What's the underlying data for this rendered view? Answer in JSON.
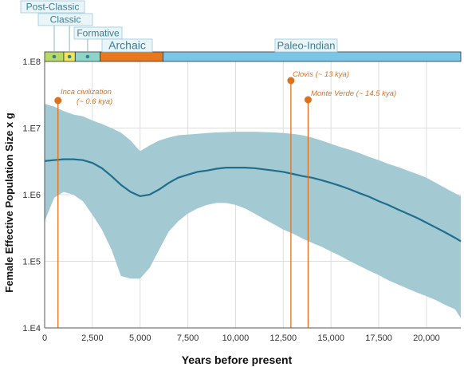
{
  "chart_data": {
    "type": "area",
    "xlabel": "Years before present",
    "ylabel": "Female Effective Population Size x g",
    "xlim": [
      0,
      21800
    ],
    "ylim": [
      10000,
      100000000
    ],
    "y_scale": "log",
    "grid": true,
    "x_ticks": [
      0,
      2500,
      5000,
      7500,
      10000,
      12500,
      15000,
      17500,
      20000
    ],
    "x_tick_labels": [
      "0",
      "2,500",
      "5,000",
      "7,500",
      "10,000",
      "12,500",
      "15,000",
      "17,500",
      "20,000"
    ],
    "y_ticks": [
      10000,
      100000,
      1000000,
      10000000,
      100000000
    ],
    "y_tick_labels": [
      "1.E4",
      "1.E5",
      "1.E6",
      "1.E7",
      "1.E8"
    ],
    "median": {
      "x": [
        0,
        500,
        1000,
        1500,
        2000,
        2500,
        3000,
        3500,
        4000,
        4500,
        5000,
        5500,
        6000,
        6500,
        7000,
        7500,
        8000,
        8500,
        9000,
        9500,
        10000,
        10500,
        11000,
        11500,
        12000,
        12500,
        13000,
        13500,
        14000,
        14500,
        15000,
        15500,
        16000,
        16500,
        17000,
        17500,
        18000,
        18500,
        19000,
        19500,
        20000,
        20500,
        21000,
        21500,
        21800
      ],
      "y": [
        3200000,
        3300000,
        3400000,
        3400000,
        3300000,
        3000000,
        2500000,
        1900000,
        1400000,
        1100000,
        950000,
        1000000,
        1200000,
        1500000,
        1800000,
        2000000,
        2200000,
        2300000,
        2450000,
        2550000,
        2550000,
        2550000,
        2500000,
        2400000,
        2300000,
        2200000,
        2050000,
        1900000,
        1800000,
        1650000,
        1500000,
        1350000,
        1200000,
        1050000,
        930000,
        800000,
        700000,
        600000,
        520000,
        450000,
        380000,
        320000,
        270000,
        225000,
        200000
      ]
    },
    "band_upper": [
      23000000,
      21000000,
      18000000,
      16000000,
      15000000,
      13000000,
      11500000,
      10000000,
      8500000,
      6500000,
      4500000,
      5500000,
      6500000,
      7200000,
      7800000,
      8000000,
      8200000,
      8400000,
      8600000,
      8700000,
      8800000,
      8800000,
      8800000,
      8700000,
      8600000,
      8400000,
      8200000,
      7800000,
      7200000,
      6500000,
      5800000,
      5200000,
      4700000,
      4200000,
      3700000,
      3300000,
      2900000,
      2600000,
      2300000,
      2050000,
      1800000,
      1500000,
      1250000,
      1050000,
      950000
    ],
    "band_lower": [
      400000,
      900000,
      1100000,
      1000000,
      800000,
      500000,
      300000,
      150000,
      60000,
      55000,
      55000,
      80000,
      150000,
      280000,
      400000,
      520000,
      620000,
      700000,
      750000,
      750000,
      700000,
      620000,
      520000,
      430000,
      360000,
      300000,
      260000,
      220000,
      190000,
      165000,
      140000,
      120000,
      100000,
      85000,
      72000,
      62000,
      52000,
      45000,
      39000,
      34000,
      30000,
      26000,
      22000,
      19000,
      14000
    ],
    "colors": {
      "band": "#a3c9d3",
      "median": "#1f6e8c",
      "annotation": "#e0711c",
      "grid": "#dddddd"
    }
  },
  "eras": [
    {
      "label": "Post-Classic",
      "start": 0,
      "end": 1000,
      "color": "#b7d96a",
      "dot": true
    },
    {
      "label": "Classic",
      "start": 1000,
      "end": 1600,
      "color": "#f0e65a",
      "dot": true
    },
    {
      "label": "Formative",
      "start": 1600,
      "end": 2900,
      "color": "#8ed5c9",
      "dot": true
    },
    {
      "label": "Archaic",
      "start": 2900,
      "end": 6200,
      "color": "#e8771e",
      "dot": false
    },
    {
      "label": "Paleo-Indian",
      "start": 6200,
      "end": 21800,
      "color": "#7bc6e7",
      "dot": false
    }
  ],
  "annotations": [
    {
      "lines": [
        "Inca civilization",
        "(~ 0.6 kya)"
      ],
      "x": 700
    },
    {
      "lines": [
        "Clovis (~ 13 kya)"
      ],
      "x": 12900
    },
    {
      "lines": [
        "Monte Verde (~ 14.5 kya)"
      ],
      "x": 13800
    }
  ]
}
